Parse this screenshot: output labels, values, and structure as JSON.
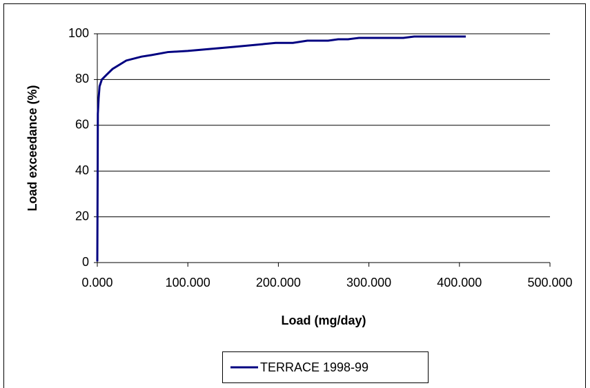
{
  "chart_data": {
    "type": "line",
    "x_label": "Load (mg/day)",
    "y_label": "Load exceedance (%)",
    "x": [
      0,
      0.2,
      0.4,
      0.6,
      1.5,
      2.5,
      5,
      10,
      16.8,
      32,
      48.8,
      60,
      78,
      100,
      152,
      197,
      216,
      232,
      255,
      266,
      277,
      289,
      338,
      350,
      407
    ],
    "series": [
      {
        "name": "TERRACE 1998-99",
        "color": "#000080",
        "values": [
          0.5,
          20,
          40,
          65,
          72,
          77,
          80,
          82,
          84.6,
          88.3,
          90,
          90.7,
          92,
          92.5,
          94.3,
          96,
          96,
          97,
          97,
          97.6,
          97.6,
          98.2,
          98.2,
          98.8,
          98.8
        ]
      }
    ],
    "xlim": [
      0,
      500
    ],
    "xticks": [
      {
        "value": 0,
        "label": "0.000"
      },
      {
        "value": 100,
        "label": "100.000"
      },
      {
        "value": 200,
        "label": "200.000"
      },
      {
        "value": 300,
        "label": "300.000"
      },
      {
        "value": 400,
        "label": "400.000"
      },
      {
        "value": 500,
        "label": "500.000"
      }
    ],
    "ylim": [
      0,
      100
    ],
    "yticks": [
      0,
      20,
      40,
      60,
      80,
      100
    ],
    "grid": true,
    "legend": "bottom"
  }
}
